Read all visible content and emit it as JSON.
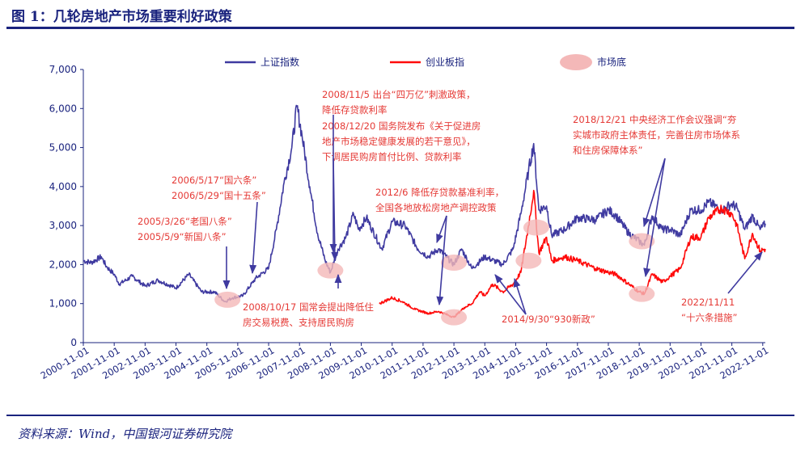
{
  "figure": {
    "title": "图 1：几轮房地产市场重要利好政策",
    "source": "资料来源：Wind，中国银河证券研究院"
  },
  "colors": {
    "sse": "#3f3aa0",
    "chinext": "#ff0a0a",
    "bottom": "#f4b8b8",
    "text": "#1a237e",
    "annotation": "#e53935"
  },
  "chart_data": {
    "type": "line",
    "ylim": [
      0,
      7000
    ],
    "y_ticks": [
      0,
      1000,
      2000,
      3000,
      4000,
      5000,
      6000,
      7000
    ],
    "y_tick_labels": [
      "0",
      "1,000",
      "2,000",
      "3,000",
      "4,000",
      "5,000",
      "6,000",
      "7,000"
    ],
    "x_tick_labels": [
      "2000-11-01",
      "2001-11-01",
      "2002-11-01",
      "2003-11-01",
      "2004-11-01",
      "2005-11-01",
      "2006-11-01",
      "2007-11-01",
      "2008-11-01",
      "2009-11-01",
      "2010-11-01",
      "2011-11-01",
      "2012-11-01",
      "2013-11-01",
      "2014-11-01",
      "2015-11-01",
      "2016-11-01",
      "2017-11-01",
      "2018-11-01",
      "2019-11-01",
      "2020-11-01",
      "2021-11-01",
      "2022-11-01"
    ],
    "x_range": [
      "2000-11",
      "2022-12"
    ],
    "legend": [
      "上证指数",
      "创业板指",
      "市场底"
    ],
    "legend_placement": "top-center",
    "series": [
      {
        "name": "上证指数",
        "points": [
          [
            "2000-11",
            2100
          ],
          [
            "2001-02",
            2050
          ],
          [
            "2001-06",
            2200
          ],
          [
            "2001-08",
            1950
          ],
          [
            "2001-11",
            1750
          ],
          [
            "2002-01",
            1500
          ],
          [
            "2002-06",
            1700
          ],
          [
            "2002-11",
            1450
          ],
          [
            "2003-04",
            1600
          ],
          [
            "2003-11",
            1400
          ],
          [
            "2004-04",
            1750
          ],
          [
            "2004-09",
            1300
          ],
          [
            "2005-02",
            1300
          ],
          [
            "2005-06",
            1050
          ],
          [
            "2005-09",
            1150
          ],
          [
            "2006-01",
            1200
          ],
          [
            "2006-06",
            1650
          ],
          [
            "2006-11",
            1900
          ],
          [
            "2007-02",
            2900
          ],
          [
            "2007-05",
            4100
          ],
          [
            "2007-08",
            5000
          ],
          [
            "2007-10",
            6050
          ],
          [
            "2007-12",
            5300
          ],
          [
            "2008-03",
            4000
          ],
          [
            "2008-06",
            2800
          ],
          [
            "2008-09",
            2100
          ],
          [
            "2008-11",
            1800
          ],
          [
            "2009-02",
            2400
          ],
          [
            "2009-05",
            2700
          ],
          [
            "2009-08",
            3300
          ],
          [
            "2009-10",
            2900
          ],
          [
            "2010-01",
            3200
          ],
          [
            "2010-07",
            2400
          ],
          [
            "2010-11",
            3100
          ],
          [
            "2011-04",
            3000
          ],
          [
            "2011-09",
            2400
          ],
          [
            "2012-01",
            2200
          ],
          [
            "2012-05",
            2400
          ],
          [
            "2012-11",
            2000
          ],
          [
            "2013-02",
            2400
          ],
          [
            "2013-06",
            1900
          ],
          [
            "2013-11",
            2200
          ],
          [
            "2014-06",
            2000
          ],
          [
            "2014-10",
            2400
          ],
          [
            "2015-01",
            3300
          ],
          [
            "2015-04",
            4400
          ],
          [
            "2015-06",
            5100
          ],
          [
            "2015-08",
            3400
          ],
          [
            "2015-11",
            3500
          ],
          [
            "2016-01",
            2750
          ],
          [
            "2016-06",
            2900
          ],
          [
            "2016-11",
            3200
          ],
          [
            "2017-06",
            3150
          ],
          [
            "2017-11",
            3400
          ],
          [
            "2018-02",
            3250
          ],
          [
            "2018-07",
            2800
          ],
          [
            "2018-11",
            2600
          ],
          [
            "2019-01",
            2500
          ],
          [
            "2019-04",
            3250
          ],
          [
            "2019-08",
            2900
          ],
          [
            "2019-11",
            2900
          ],
          [
            "2020-03",
            2750
          ],
          [
            "2020-07",
            3400
          ],
          [
            "2020-11",
            3400
          ],
          [
            "2021-02",
            3600
          ],
          [
            "2021-07",
            3400
          ],
          [
            "2021-11",
            3550
          ],
          [
            "2022-01",
            3450
          ],
          [
            "2022-04",
            2900
          ],
          [
            "2022-07",
            3250
          ],
          [
            "2022-10",
            2900
          ],
          [
            "2022-12",
            3050
          ]
        ]
      },
      {
        "name": "创业板指",
        "points": [
          [
            "2010-06",
            1000
          ],
          [
            "2010-11",
            1150
          ],
          [
            "2011-03",
            1050
          ],
          [
            "2011-08",
            850
          ],
          [
            "2012-01",
            750
          ],
          [
            "2012-05",
            800
          ],
          [
            "2012-11",
            650
          ],
          [
            "2013-03",
            900
          ],
          [
            "2013-06",
            1000
          ],
          [
            "2013-09",
            1300
          ],
          [
            "2013-11",
            1200
          ],
          [
            "2014-02",
            1500
          ],
          [
            "2014-06",
            1300
          ],
          [
            "2014-10",
            1500
          ],
          [
            "2015-01",
            1800
          ],
          [
            "2015-04",
            3000
          ],
          [
            "2015-06",
            3900
          ],
          [
            "2015-08",
            2300
          ],
          [
            "2015-11",
            2700
          ],
          [
            "2016-01",
            2100
          ],
          [
            "2016-06",
            2200
          ],
          [
            "2016-11",
            2100
          ],
          [
            "2017-06",
            1900
          ],
          [
            "2017-11",
            1800
          ],
          [
            "2018-02",
            1750
          ],
          [
            "2018-07",
            1500
          ],
          [
            "2018-11",
            1300
          ],
          [
            "2019-01",
            1250
          ],
          [
            "2019-04",
            1750
          ],
          [
            "2019-08",
            1550
          ],
          [
            "2019-11",
            1700
          ],
          [
            "2020-03",
            1900
          ],
          [
            "2020-07",
            2700
          ],
          [
            "2020-11",
            2700
          ],
          [
            "2021-02",
            3200
          ],
          [
            "2021-07",
            3450
          ],
          [
            "2021-11",
            3300
          ],
          [
            "2022-01",
            3000
          ],
          [
            "2022-04",
            2150
          ],
          [
            "2022-07",
            2800
          ],
          [
            "2022-10",
            2350
          ],
          [
            "2022-12",
            2400
          ]
        ]
      }
    ],
    "market_bottoms": [
      {
        "date": "2005-07",
        "value": 1100
      },
      {
        "date": "2008-11",
        "value": 1850
      },
      {
        "date": "2012-11",
        "value": 2050
      },
      {
        "date": "2012-11",
        "value": 650
      },
      {
        "date": "2015-04",
        "value": 2100
      },
      {
        "date": "2015-07",
        "value": 2950
      },
      {
        "date": "2018-12",
        "value": 2600
      },
      {
        "date": "2018-12",
        "value": 1250
      }
    ],
    "annotations": [
      {
        "id": "a2005",
        "lines": [
          "2005/3/26“老国八条”",
          "2005/5/9“新国八条”"
        ]
      },
      {
        "id": "a2006",
        "lines": [
          "2006/5/17“国六条”",
          "2006/5/29“国十五条”"
        ]
      },
      {
        "id": "a2008a",
        "lines": [
          "2008/11/5 出台“四万亿”刺激政策，",
          "降低存贷款利率"
        ]
      },
      {
        "id": "a2008b",
        "lines": [
          "2008/12/20 国务院发布《关于促进房",
          "地产市场稳定健康发展的若干意见》，",
          "下调居民购房首付比例、贷款利率"
        ]
      },
      {
        "id": "a2008c",
        "lines": [
          "2008/10/17 国常会提出降低住",
          "房交易税费、支持居民购房"
        ]
      },
      {
        "id": "a2012",
        "lines": [
          "2012/6 降低存贷款基准利率，",
          "全国各地放松房地产调控政策"
        ]
      },
      {
        "id": "a2014",
        "lines": [
          "2014/9/30“930新政”"
        ]
      },
      {
        "id": "a2018",
        "lines": [
          "2018/12/21 中央经济工作会议强调“夯",
          "实城市政府主体责任，完善住房市场体系",
          "和住房保障体系”"
        ]
      },
      {
        "id": "a2022",
        "lines": [
          "2022/11/11",
          "“十六条措施”"
        ]
      }
    ]
  }
}
